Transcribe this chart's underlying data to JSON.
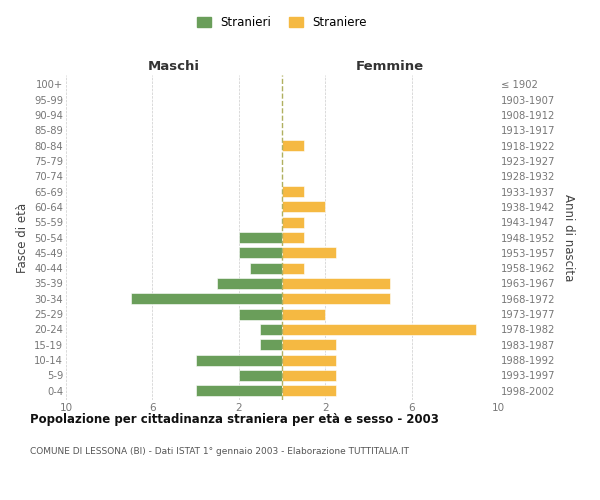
{
  "age_groups": [
    "0-4",
    "5-9",
    "10-14",
    "15-19",
    "20-24",
    "25-29",
    "30-34",
    "35-39",
    "40-44",
    "45-49",
    "50-54",
    "55-59",
    "60-64",
    "65-69",
    "70-74",
    "75-79",
    "80-84",
    "85-89",
    "90-94",
    "95-99",
    "100+"
  ],
  "birth_years": [
    "1998-2002",
    "1993-1997",
    "1988-1992",
    "1983-1987",
    "1978-1982",
    "1973-1977",
    "1968-1972",
    "1963-1967",
    "1958-1962",
    "1953-1957",
    "1948-1952",
    "1943-1947",
    "1938-1942",
    "1933-1937",
    "1928-1932",
    "1923-1927",
    "1918-1922",
    "1913-1917",
    "1908-1912",
    "1903-1907",
    "≤ 1902"
  ],
  "males": [
    4,
    2,
    4,
    1,
    1,
    2,
    7,
    3,
    1.5,
    2,
    2,
    0,
    0,
    0,
    0,
    0,
    0,
    0,
    0,
    0,
    0
  ],
  "females": [
    2.5,
    2.5,
    2.5,
    2.5,
    9,
    2,
    5,
    5,
    1,
    2.5,
    1,
    1,
    2,
    1,
    0,
    0,
    1,
    0,
    0,
    0,
    0
  ],
  "male_color": "#6a9e5a",
  "female_color": "#f5b942",
  "bar_edge_color": "white",
  "grid_color": "#cccccc",
  "title": "Popolazione per cittadinanza straniera per età e sesso - 2003",
  "subtitle": "COMUNE DI LESSONA (BI) - Dati ISTAT 1° gennaio 2003 - Elaborazione TUTTITALIA.IT",
  "xlabel_left": "Maschi",
  "xlabel_right": "Femmine",
  "ylabel_left": "Fasce di età",
  "ylabel_right": "Anni di nascita",
  "xlim": 10,
  "xtick_positions": [
    -10,
    -6,
    -2,
    2,
    6,
    10
  ],
  "xtick_labels": [
    "10",
    "6",
    "2",
    "2",
    "6",
    "10"
  ],
  "legend_stranieri": "Stranieri",
  "legend_straniere": "Straniere",
  "background_color": "#ffffff",
  "center_line_color": "#b0b060"
}
